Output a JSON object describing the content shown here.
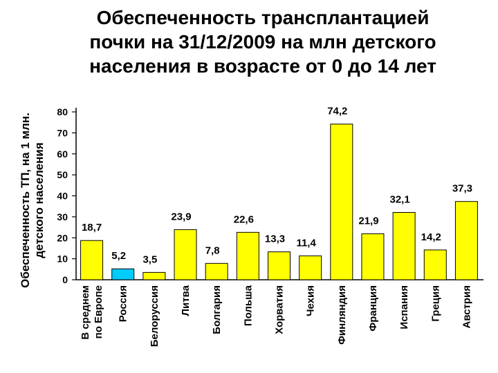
{
  "chart_data": {
    "type": "bar",
    "title_lines": [
      "Обеспеченность трансплантацией",
      "почки на 31/12/2009 на млн детского",
      "населения в возрасте от 0 до 14 лет"
    ],
    "ylabel_lines": [
      "Обеспеченность ТП, на 1 млн.",
      "детского населения"
    ],
    "xlabel": "",
    "ylim": [
      0,
      80
    ],
    "yticks": [
      0,
      10,
      20,
      30,
      40,
      50,
      60,
      70,
      80
    ],
    "grid": false,
    "legend": "none",
    "bar_color": "#ffff00",
    "highlight_color": "#00ccff",
    "categories": [
      "В среднем по Европе",
      "Россия",
      "Белоруссия",
      "Литва",
      "Болгария",
      "Польша",
      "Хорватия",
      "Чехия",
      "Финляндия",
      "Франция",
      "Испания",
      "Греция",
      "Австрия"
    ],
    "category_lines": [
      [
        "В среднем",
        "по Европе"
      ],
      [
        "Россия"
      ],
      [
        "Белоруссия"
      ],
      [
        "Литва"
      ],
      [
        "Болгария"
      ],
      [
        "Польша"
      ],
      [
        "Хорватия"
      ],
      [
        "Чехия"
      ],
      [
        "Финляндия"
      ],
      [
        "Франция"
      ],
      [
        "Испания"
      ],
      [
        "Греция"
      ],
      [
        "Австрия"
      ]
    ],
    "values": [
      18.7,
      5.2,
      3.5,
      23.9,
      7.8,
      22.6,
      13.3,
      11.4,
      74.2,
      21.9,
      32.1,
      14.2,
      37.3
    ],
    "value_labels": [
      "18,7",
      "5,2",
      "3,5",
      "23,9",
      "7,8",
      "22,6",
      "13,3",
      "11,4",
      "74,2",
      "21,9",
      "32,1",
      "14,2",
      "37,3"
    ],
    "highlight_index": 1
  }
}
